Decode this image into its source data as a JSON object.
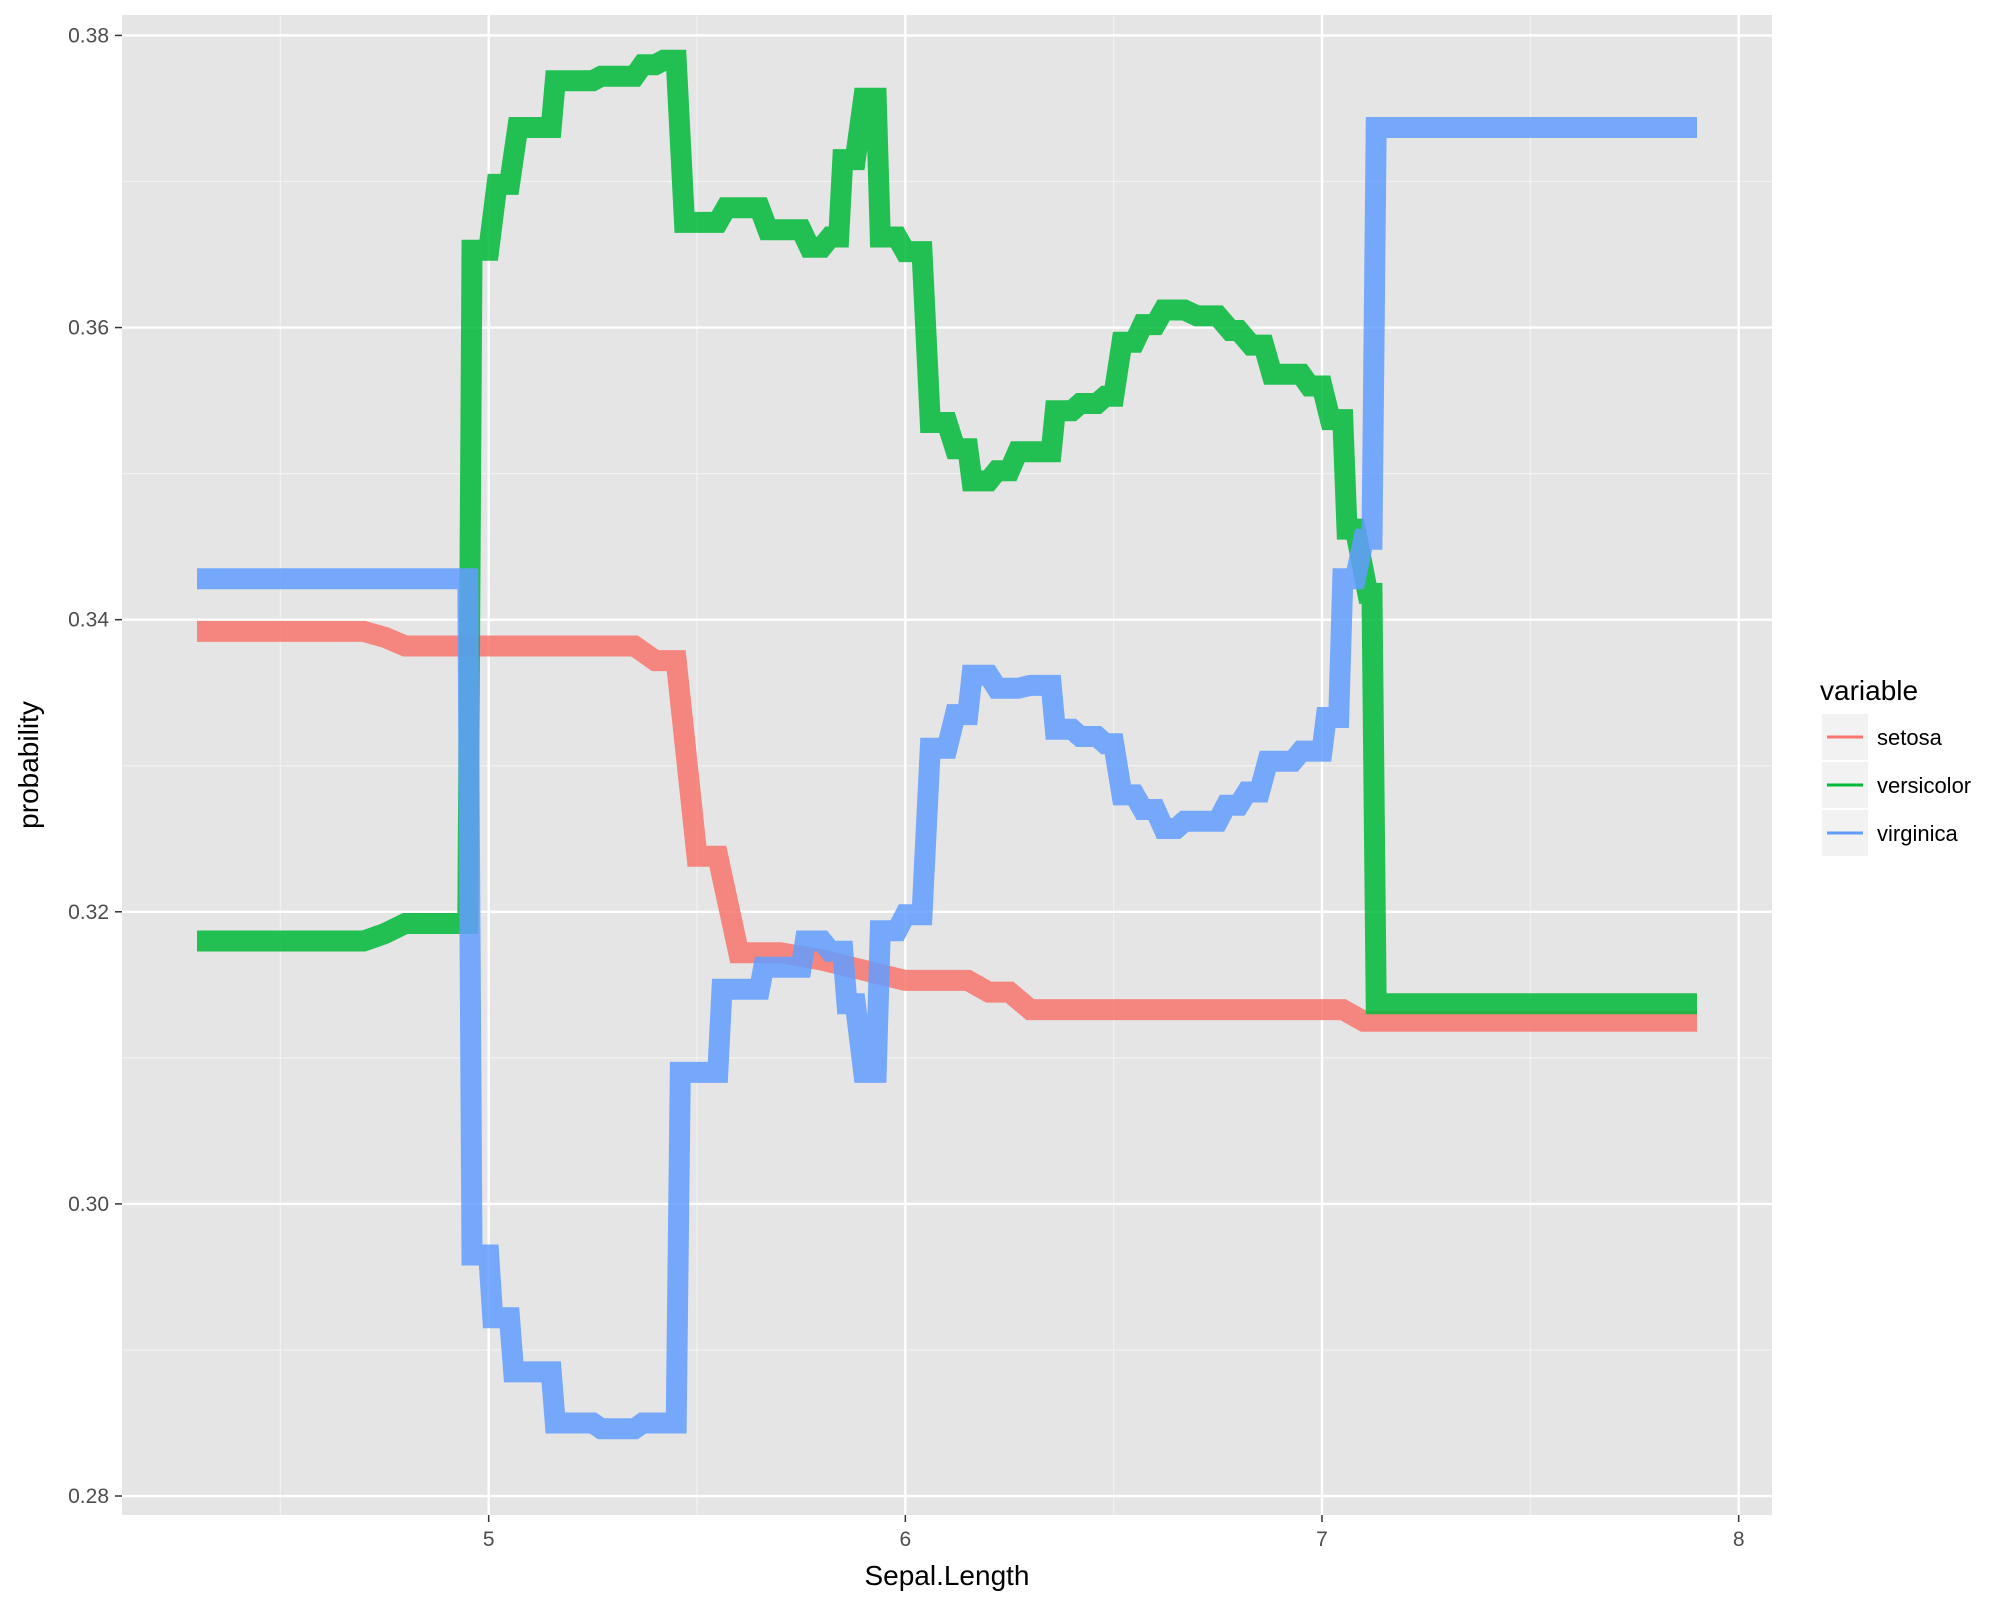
{
  "chart_data": {
    "type": "line",
    "xlabel": "Sepal.Length",
    "ylabel": "probability",
    "xlim": [
      4.12,
      8.08
    ],
    "ylim": [
      0.2787,
      0.3814
    ],
    "x_ticks": [
      5,
      6,
      7,
      8
    ],
    "x_tick_labels": [
      "5",
      "6",
      "7",
      "8"
    ],
    "y_ticks": [
      0.28,
      0.3,
      0.32,
      0.34,
      0.36,
      0.38
    ],
    "y_tick_labels": [
      "0.28",
      "0.30",
      "0.32",
      "0.34",
      "0.36",
      "0.38"
    ],
    "grid": true,
    "legend": {
      "title": "variable",
      "position": "right"
    },
    "series": [
      {
        "name": "setosa",
        "color": "#F8766D",
        "points": [
          [
            4.3,
            0.3392
          ],
          [
            4.4,
            0.3392
          ],
          [
            4.5,
            0.3392
          ],
          [
            4.6,
            0.3392
          ],
          [
            4.7,
            0.3392
          ],
          [
            4.75,
            0.3388
          ],
          [
            4.8,
            0.3382
          ],
          [
            4.9,
            0.3382
          ],
          [
            5.0,
            0.3382
          ],
          [
            5.1,
            0.3382
          ],
          [
            5.2,
            0.3382
          ],
          [
            5.3,
            0.3382
          ],
          [
            5.35,
            0.3382
          ],
          [
            5.4,
            0.3372
          ],
          [
            5.45,
            0.3372
          ],
          [
            5.5,
            0.3238
          ],
          [
            5.55,
            0.3238
          ],
          [
            5.6,
            0.3172
          ],
          [
            5.7,
            0.3172
          ],
          [
            5.8,
            0.3167
          ],
          [
            5.9,
            0.316
          ],
          [
            6.0,
            0.3153
          ],
          [
            6.1,
            0.3153
          ],
          [
            6.15,
            0.3153
          ],
          [
            6.2,
            0.3145
          ],
          [
            6.25,
            0.3145
          ],
          [
            6.3,
            0.3133
          ],
          [
            6.4,
            0.3133
          ],
          [
            6.5,
            0.3133
          ],
          [
            6.6,
            0.3133
          ],
          [
            6.7,
            0.3133
          ],
          [
            6.8,
            0.3133
          ],
          [
            6.9,
            0.3133
          ],
          [
            7.0,
            0.3133
          ],
          [
            7.05,
            0.3133
          ],
          [
            7.1,
            0.3125
          ],
          [
            7.2,
            0.3125
          ],
          [
            7.3,
            0.3125
          ],
          [
            7.4,
            0.3125
          ],
          [
            7.5,
            0.3125
          ],
          [
            7.6,
            0.3125
          ],
          [
            7.7,
            0.3125
          ],
          [
            7.8,
            0.3125
          ],
          [
            7.9,
            0.3125
          ]
        ]
      },
      {
        "name": "versicolor",
        "color": "#00BA38",
        "points": [
          [
            4.3,
            0.318
          ],
          [
            4.4,
            0.318
          ],
          [
            4.5,
            0.318
          ],
          [
            4.6,
            0.318
          ],
          [
            4.7,
            0.318
          ],
          [
            4.75,
            0.3185
          ],
          [
            4.8,
            0.3192
          ],
          [
            4.85,
            0.3192
          ],
          [
            4.9,
            0.3192
          ],
          [
            4.95,
            0.3192
          ],
          [
            4.96,
            0.3653
          ],
          [
            5.0,
            0.3653
          ],
          [
            5.02,
            0.3698
          ],
          [
            5.05,
            0.3698
          ],
          [
            5.07,
            0.3737
          ],
          [
            5.12,
            0.3737
          ],
          [
            5.15,
            0.3737
          ],
          [
            5.16,
            0.3769
          ],
          [
            5.2,
            0.3769
          ],
          [
            5.25,
            0.3769
          ],
          [
            5.27,
            0.3772
          ],
          [
            5.35,
            0.3772
          ],
          [
            5.37,
            0.378
          ],
          [
            5.4,
            0.378
          ],
          [
            5.42,
            0.3783
          ],
          [
            5.45,
            0.3783
          ],
          [
            5.47,
            0.3672
          ],
          [
            5.55,
            0.3672
          ],
          [
            5.57,
            0.3682
          ],
          [
            5.62,
            0.3682
          ],
          [
            5.65,
            0.3682
          ],
          [
            5.67,
            0.3667
          ],
          [
            5.75,
            0.3667
          ],
          [
            5.77,
            0.3655
          ],
          [
            5.8,
            0.3655
          ],
          [
            5.82,
            0.3662
          ],
          [
            5.84,
            0.3662
          ],
          [
            5.85,
            0.3715
          ],
          [
            5.88,
            0.3715
          ],
          [
            5.9,
            0.3757
          ],
          [
            5.93,
            0.3757
          ],
          [
            5.94,
            0.3662
          ],
          [
            5.98,
            0.3662
          ],
          [
            6.0,
            0.3652
          ],
          [
            6.04,
            0.3652
          ],
          [
            6.06,
            0.3535
          ],
          [
            6.1,
            0.3535
          ],
          [
            6.12,
            0.3517
          ],
          [
            6.15,
            0.3517
          ],
          [
            6.16,
            0.3495
          ],
          [
            6.2,
            0.3495
          ],
          [
            6.22,
            0.3502
          ],
          [
            6.25,
            0.3502
          ],
          [
            6.27,
            0.3515
          ],
          [
            6.35,
            0.3515
          ],
          [
            6.36,
            0.3543
          ],
          [
            6.4,
            0.3543
          ],
          [
            6.42,
            0.3548
          ],
          [
            6.46,
            0.3548
          ],
          [
            6.48,
            0.3553
          ],
          [
            6.5,
            0.3553
          ],
          [
            6.52,
            0.359
          ],
          [
            6.55,
            0.359
          ],
          [
            6.57,
            0.3602
          ],
          [
            6.6,
            0.3602
          ],
          [
            6.62,
            0.3612
          ],
          [
            6.67,
            0.3612
          ],
          [
            6.7,
            0.3608
          ],
          [
            6.75,
            0.3608
          ],
          [
            6.78,
            0.3598
          ],
          [
            6.8,
            0.3598
          ],
          [
            6.83,
            0.3588
          ],
          [
            6.86,
            0.3588
          ],
          [
            6.88,
            0.3568
          ],
          [
            6.95,
            0.3568
          ],
          [
            6.97,
            0.356
          ],
          [
            7.0,
            0.356
          ],
          [
            7.02,
            0.3537
          ],
          [
            7.05,
            0.3537
          ],
          [
            7.06,
            0.3462
          ],
          [
            7.08,
            0.3462
          ],
          [
            7.11,
            0.3418
          ],
          [
            7.12,
            0.3418
          ],
          [
            7.13,
            0.3137
          ],
          [
            7.2,
            0.3137
          ],
          [
            7.3,
            0.3137
          ],
          [
            7.4,
            0.3137
          ],
          [
            7.5,
            0.3137
          ],
          [
            7.6,
            0.3137
          ],
          [
            7.7,
            0.3137
          ],
          [
            7.8,
            0.3137
          ],
          [
            7.9,
            0.3137
          ]
        ]
      },
      {
        "name": "virginica",
        "color": "#619CFF",
        "points": [
          [
            4.3,
            0.3428
          ],
          [
            4.4,
            0.3428
          ],
          [
            4.5,
            0.3428
          ],
          [
            4.6,
            0.3428
          ],
          [
            4.7,
            0.3428
          ],
          [
            4.8,
            0.3428
          ],
          [
            4.9,
            0.3428
          ],
          [
            4.95,
            0.3428
          ],
          [
            4.96,
            0.2965
          ],
          [
            5.0,
            0.2965
          ],
          [
            5.01,
            0.2922
          ],
          [
            5.05,
            0.2922
          ],
          [
            5.06,
            0.2885
          ],
          [
            5.1,
            0.2885
          ],
          [
            5.15,
            0.2885
          ],
          [
            5.16,
            0.285
          ],
          [
            5.2,
            0.285
          ],
          [
            5.25,
            0.285
          ],
          [
            5.27,
            0.2846
          ],
          [
            5.35,
            0.2846
          ],
          [
            5.37,
            0.285
          ],
          [
            5.45,
            0.285
          ],
          [
            5.46,
            0.309
          ],
          [
            5.5,
            0.309
          ],
          [
            5.55,
            0.309
          ],
          [
            5.56,
            0.3147
          ],
          [
            5.6,
            0.3147
          ],
          [
            5.65,
            0.3147
          ],
          [
            5.66,
            0.3162
          ],
          [
            5.7,
            0.3162
          ],
          [
            5.75,
            0.3162
          ],
          [
            5.76,
            0.318
          ],
          [
            5.8,
            0.318
          ],
          [
            5.82,
            0.3173
          ],
          [
            5.85,
            0.3173
          ],
          [
            5.86,
            0.3137
          ],
          [
            5.88,
            0.3137
          ],
          [
            5.9,
            0.309
          ],
          [
            5.93,
            0.309
          ],
          [
            5.94,
            0.3187
          ],
          [
            5.98,
            0.3187
          ],
          [
            6.0,
            0.3198
          ],
          [
            6.04,
            0.3198
          ],
          [
            6.06,
            0.3312
          ],
          [
            6.1,
            0.3312
          ],
          [
            6.12,
            0.3335
          ],
          [
            6.15,
            0.3335
          ],
          [
            6.16,
            0.3362
          ],
          [
            6.2,
            0.3362
          ],
          [
            6.22,
            0.3353
          ],
          [
            6.27,
            0.3353
          ],
          [
            6.3,
            0.3355
          ],
          [
            6.35,
            0.3355
          ],
          [
            6.36,
            0.3325
          ],
          [
            6.4,
            0.3325
          ],
          [
            6.42,
            0.332
          ],
          [
            6.46,
            0.332
          ],
          [
            6.48,
            0.3315
          ],
          [
            6.5,
            0.3315
          ],
          [
            6.52,
            0.328
          ],
          [
            6.55,
            0.328
          ],
          [
            6.57,
            0.327
          ],
          [
            6.6,
            0.327
          ],
          [
            6.62,
            0.3257
          ],
          [
            6.65,
            0.3257
          ],
          [
            6.67,
            0.3262
          ],
          [
            6.75,
            0.3262
          ],
          [
            6.77,
            0.3273
          ],
          [
            6.8,
            0.3273
          ],
          [
            6.82,
            0.3282
          ],
          [
            6.85,
            0.3282
          ],
          [
            6.87,
            0.3303
          ],
          [
            6.93,
            0.3303
          ],
          [
            6.95,
            0.331
          ],
          [
            7.0,
            0.331
          ],
          [
            7.01,
            0.3333
          ],
          [
            7.04,
            0.3333
          ],
          [
            7.05,
            0.3428
          ],
          [
            7.08,
            0.3428
          ],
          [
            7.1,
            0.3455
          ],
          [
            7.12,
            0.3455
          ],
          [
            7.13,
            0.3737
          ],
          [
            7.2,
            0.3737
          ],
          [
            7.3,
            0.3737
          ],
          [
            7.4,
            0.3737
          ],
          [
            7.5,
            0.3737
          ],
          [
            7.6,
            0.3737
          ],
          [
            7.7,
            0.3737
          ],
          [
            7.8,
            0.3737
          ],
          [
            7.9,
            0.3737
          ]
        ]
      }
    ]
  }
}
